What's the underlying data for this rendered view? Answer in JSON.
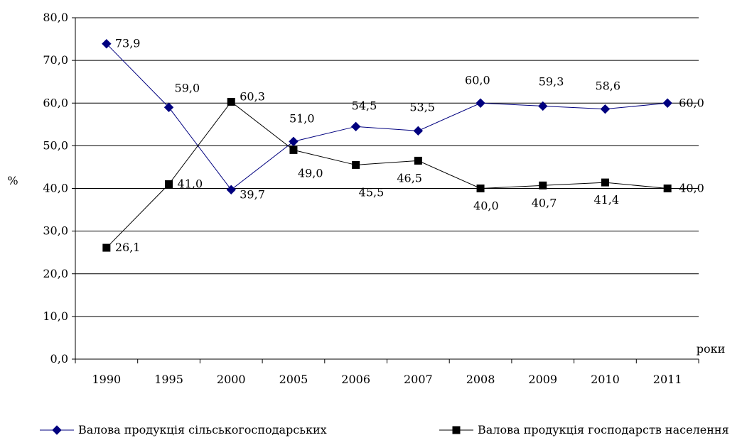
{
  "chart_data": {
    "type": "line",
    "title": "",
    "ylabel": "%",
    "xlabel": "роки",
    "ylim": [
      0,
      80
    ],
    "yticks": [
      "0,0",
      "10,0",
      "20,0",
      "30,0",
      "40,0",
      "50,0",
      "60,0",
      "70,0",
      "80,0"
    ],
    "grid": true,
    "legend_position": "bottom",
    "categories": [
      "1990",
      "1995",
      "2000",
      "2005",
      "2006",
      "2007",
      "2008",
      "2009",
      "2010",
      "2011"
    ],
    "series": [
      {
        "name": "Валова продукція сільськогосподарських",
        "marker": "diamond",
        "color": "#00007f",
        "values": [
          73.9,
          59.0,
          39.7,
          51.0,
          54.5,
          53.5,
          60.0,
          59.3,
          58.6,
          60.0
        ],
        "labels": [
          "73,9",
          "59,0",
          "39,7",
          "51,0",
          "54,5",
          "53,5",
          "60,0",
          "59,3",
          "58,6",
          "60,0"
        ]
      },
      {
        "name": "Валова продукція господарств населення",
        "marker": "square",
        "color": "#000000",
        "values": [
          26.1,
          41.0,
          60.3,
          49.0,
          45.5,
          46.5,
          40.0,
          40.7,
          41.4,
          40.0
        ],
        "labels": [
          "26,1",
          "41,0",
          "60,3",
          "49,0",
          "45,5",
          "46,5",
          "40,0",
          "40,7",
          "41,4",
          "40,0"
        ]
      }
    ]
  }
}
